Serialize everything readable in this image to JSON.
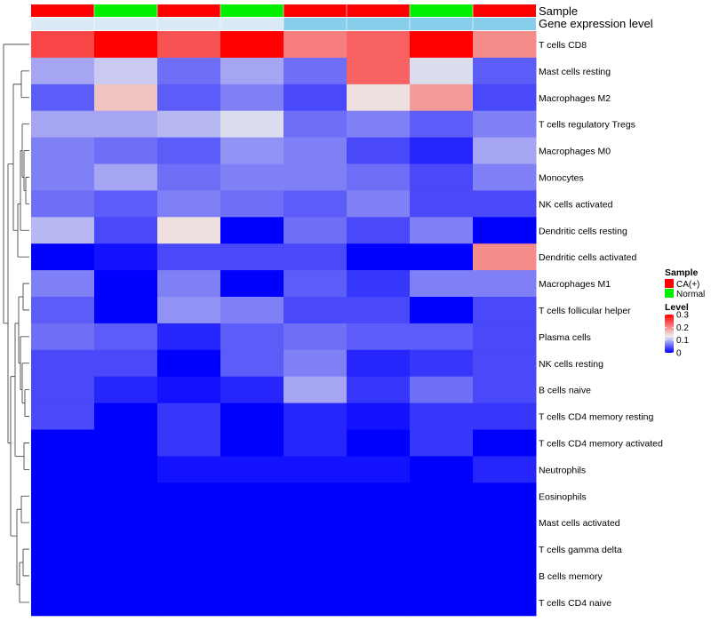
{
  "chart_data": {
    "type": "heatmap",
    "annotation_titles": [
      "Sample",
      "Gene expression level"
    ],
    "columns": [
      {
        "sample": "CA(+)",
        "gene_level": "Low"
      },
      {
        "sample": "Normal",
        "gene_level": "Low"
      },
      {
        "sample": "CA(+)",
        "gene_level": "Low"
      },
      {
        "sample": "Normal",
        "gene_level": "Low"
      },
      {
        "sample": "CA(+)",
        "gene_level": "High"
      },
      {
        "sample": "CA(+)",
        "gene_level": "High"
      },
      {
        "sample": "Normal",
        "gene_level": "High"
      },
      {
        "sample": "CA(+)",
        "gene_level": "High"
      }
    ],
    "rows": [
      "T cells CD8",
      "Mast cells resting",
      "Macrophages M2",
      "T cells regulatory  Tregs",
      "Macrophages M0",
      "Monocytes",
      "NK cells activated",
      "Dendritic cells resting",
      "Dendritic cells activated",
      "Macrophages M1",
      "T cells follicular helper",
      "Plasma cells",
      "NK cells resting",
      "B cells naive",
      "T cells CD4 memory resting",
      "T cells CD4 memory activated",
      "Neutrophils",
      "Eosinophils",
      "Mast cells activated",
      "T cells gamma delta",
      "B cells memory",
      "T cells CD4 naive"
    ],
    "values": [
      [
        0.25,
        0.3,
        0.24,
        0.3,
        0.21,
        0.23,
        0.3,
        0.2
      ],
      [
        0.09,
        0.11,
        0.06,
        0.09,
        0.06,
        0.23,
        0.12,
        0.05
      ],
      [
        0.05,
        0.16,
        0.05,
        0.07,
        0.04,
        0.14,
        0.19,
        0.04
      ],
      [
        0.09,
        0.09,
        0.1,
        0.12,
        0.06,
        0.07,
        0.05,
        0.07
      ],
      [
        0.07,
        0.06,
        0.05,
        0.08,
        0.07,
        0.04,
        0.02,
        0.09
      ],
      [
        0.07,
        0.09,
        0.06,
        0.07,
        0.07,
        0.06,
        0.04,
        0.07
      ],
      [
        0.06,
        0.05,
        0.07,
        0.06,
        0.05,
        0.07,
        0.04,
        0.04
      ],
      [
        0.1,
        0.04,
        0.14,
        0.0,
        0.06,
        0.04,
        0.07,
        0.0
      ],
      [
        0.0,
        0.01,
        0.04,
        0.04,
        0.04,
        0.0,
        0.0,
        0.2
      ],
      [
        0.07,
        0.0,
        0.07,
        0.0,
        0.05,
        0.03,
        0.07,
        0.07
      ],
      [
        0.05,
        0.0,
        0.08,
        0.07,
        0.04,
        0.04,
        0.0,
        0.04
      ],
      [
        0.06,
        0.05,
        0.02,
        0.05,
        0.06,
        0.05,
        0.05,
        0.04
      ],
      [
        0.04,
        0.04,
        0.0,
        0.05,
        0.07,
        0.02,
        0.03,
        0.04
      ],
      [
        0.04,
        0.02,
        0.01,
        0.02,
        0.09,
        0.03,
        0.06,
        0.04
      ],
      [
        0.04,
        0.0,
        0.03,
        0.0,
        0.02,
        0.01,
        0.03,
        0.03
      ],
      [
        0.0,
        0.0,
        0.03,
        0.0,
        0.02,
        0.0,
        0.03,
        0.0
      ],
      [
        0.0,
        0.0,
        0.01,
        0.01,
        0.01,
        0.01,
        0.0,
        0.02
      ],
      [
        0.0,
        0.0,
        0.0,
        0.0,
        0.0,
        0.0,
        0.0,
        0.0
      ],
      [
        0.0,
        0.0,
        0.0,
        0.0,
        0.0,
        0.0,
        0.0,
        0.0
      ],
      [
        0.0,
        0.0,
        0.0,
        0.0,
        0.0,
        0.0,
        0.0,
        0.0
      ],
      [
        0.0,
        0.0,
        0.0,
        0.0,
        0.0,
        0.0,
        0.0,
        0.0
      ],
      [
        0.0,
        0.0,
        0.0,
        0.0,
        0.0,
        0.0,
        0.0,
        0.0
      ]
    ],
    "color_scale": {
      "min": 0,
      "max": 0.3,
      "low": "#0000ff",
      "mid": "#eeeeee",
      "high": "#ff0000",
      "mid_value": 0.13
    },
    "legends": [
      {
        "title": "Sample",
        "type": "categorical",
        "items": [
          {
            "label": "CA(+)",
            "color": "#ff0000"
          },
          {
            "label": "Normal",
            "color": "#00ee00"
          }
        ]
      },
      {
        "title": "Level",
        "type": "continuous",
        "ticks": [
          "0.3",
          "0.2",
          "0.1",
          "0"
        ],
        "tick_values": [
          0.3,
          0.2,
          0.1,
          0
        ]
      }
    ],
    "gene_level_colors": {
      "Low": "#daeaf6",
      "High": "#87ceeb"
    },
    "sample_colors": {
      "CA(+)": "#ff0000",
      "Normal": "#00ee00"
    }
  }
}
